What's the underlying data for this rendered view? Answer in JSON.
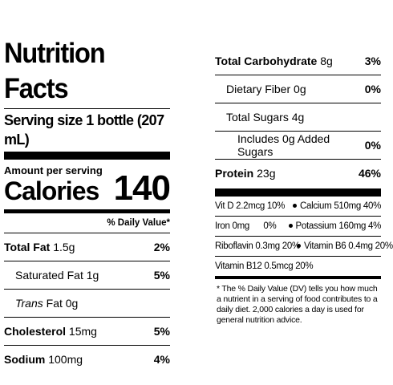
{
  "label": {
    "title": "Nutrition Facts",
    "serving_size": "Serving size 1 bottle (207 mL)",
    "amount_per_serving": "Amount per serving",
    "calories_label": "Calories",
    "calories_value": "140",
    "dv_header": "% Daily Value*"
  },
  "left_rows": [
    {
      "name": "Total Fat",
      "amount": "1.5g",
      "dv": "2%"
    },
    {
      "name": "Saturated Fat",
      "amount": "1g",
      "dv": "5%"
    },
    {
      "name": "Trans",
      "name_suffix": " Fat",
      "amount": "0g",
      "dv": ""
    },
    {
      "name": "Cholesterol",
      "amount": "15mg",
      "dv": "5%"
    },
    {
      "name": "Sodium",
      "amount": "100mg",
      "dv": "4%"
    }
  ],
  "right_rows": [
    {
      "name": "Total Carbohydrate",
      "amount": "8g",
      "dv": "3%"
    },
    {
      "name": "Dietary Fiber",
      "amount": "0g",
      "dv": "0%"
    },
    {
      "name": "Total Sugars",
      "amount": "4g",
      "dv": ""
    },
    {
      "name": "Includes 0g Added Sugars",
      "amount": "",
      "dv": "0%"
    },
    {
      "name": "Protein",
      "amount": "23g",
      "dv": "46%"
    }
  ],
  "vitamins": [
    {
      "a": "Vit D 2.2mcg 10%",
      "b": "Calcium 510mg 40%"
    },
    {
      "a": "Iron 0mg      0%",
      "b": "Potassium 160mg 4%"
    },
    {
      "a": "Riboflavin 0.3mg 20%",
      "b": "Vitamin B6 0.4mg 20%"
    },
    {
      "a": "Vitamin B12 0.5mcg 20%",
      "b": ""
    }
  ],
  "footnote": "* The % Daily Value (DV) tells you how much a nutrient in a serving of food contributes to a daily diet. 2,000 calories a day is used for general nutrition advice."
}
